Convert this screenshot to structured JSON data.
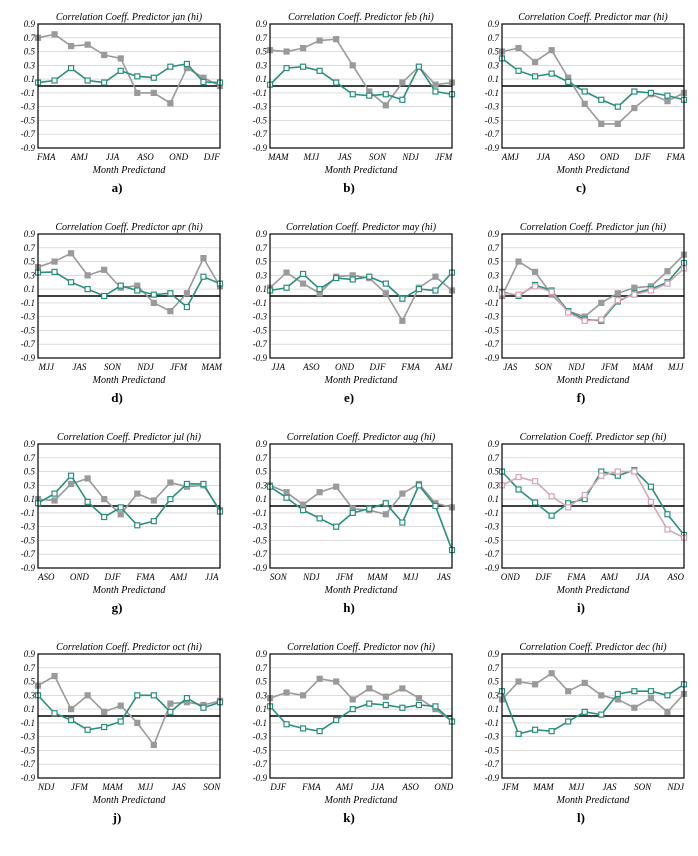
{
  "global": {
    "ylim": [
      -0.9,
      0.9
    ],
    "yticks": [
      -0.9,
      -0.7,
      -0.5,
      -0.3,
      -0.1,
      0.1,
      0.3,
      0.5,
      0.7,
      0.9
    ],
    "grid_color": "#c8c8c8",
    "axis_color": "#000000",
    "background_color": "#ffffff",
    "title_fontsize": 10,
    "tick_fontsize": 9,
    "axis_label_fontsize": 10,
    "font_family": "Comic Sans MS",
    "line_width": 1.6,
    "marker_size": 5,
    "xlabel": "Month Predictand",
    "series_styles": {
      "gray": {
        "color": "#9a9a9a",
        "marker_fill": "#9a9a9a",
        "marker_stroke": "#9a9a9a",
        "marker_shape": "square"
      },
      "teal": {
        "color": "#2a8f7f",
        "marker_fill": "#ffffff",
        "marker_stroke": "#2a8f7f",
        "marker_shape": "square"
      },
      "pink": {
        "color": "#d4a5b5",
        "marker_fill": "#ffffff",
        "marker_stroke": "#d4a5b5",
        "marker_shape": "square"
      }
    }
  },
  "panels": [
    {
      "sublabel": "a)",
      "title": "Correlation Coeff. Predictor jan (hi)",
      "xlabels": [
        "FMA",
        "AMJ",
        "JJA",
        "ASO",
        "OND",
        "DJF"
      ],
      "series": [
        {
          "style": "gray",
          "values": [
            0.7,
            0.75,
            0.58,
            0.6,
            0.45,
            0.4,
            -0.1,
            -0.1,
            -0.25,
            0.26,
            0.12,
            0.0
          ]
        },
        {
          "style": "teal",
          "values": [
            0.05,
            0.08,
            0.26,
            0.08,
            0.05,
            0.22,
            0.14,
            0.12,
            0.28,
            0.32,
            0.06,
            0.05
          ]
        }
      ]
    },
    {
      "sublabel": "b)",
      "title": "Correlation Coeff. Predictor feb (hi)",
      "xlabels": [
        "MAM",
        "MJJ",
        "JAS",
        "SON",
        "NDJ",
        "JFM"
      ],
      "series": [
        {
          "style": "gray",
          "values": [
            0.52,
            0.5,
            0.55,
            0.66,
            0.68,
            0.3,
            -0.08,
            -0.28,
            0.05,
            0.28,
            0.02,
            0.05
          ]
        },
        {
          "style": "teal",
          "values": [
            0.02,
            0.26,
            0.28,
            0.22,
            0.05,
            -0.12,
            -0.14,
            -0.12,
            -0.2,
            0.28,
            -0.08,
            -0.12
          ]
        }
      ]
    },
    {
      "sublabel": "c)",
      "title": "Correlation Coeff. Predictor mar (hi)",
      "xlabels": [
        "AMJ",
        "JJA",
        "ASO",
        "OND",
        "DJF",
        "FMA"
      ],
      "series": [
        {
          "style": "gray",
          "values": [
            0.5,
            0.55,
            0.35,
            0.52,
            0.12,
            -0.26,
            -0.55,
            -0.55,
            -0.32,
            -0.12,
            -0.22,
            -0.1
          ]
        },
        {
          "style": "teal",
          "values": [
            0.4,
            0.22,
            0.14,
            0.18,
            0.06,
            -0.08,
            -0.2,
            -0.3,
            -0.08,
            -0.1,
            -0.14,
            -0.2
          ]
        }
      ]
    },
    {
      "sublabel": "d)",
      "title": "Correlation Coeff. Predictor apr (hi)",
      "xlabels": [
        "MJJ",
        "JAS",
        "SON",
        "NDJ",
        "JFM",
        "MAM"
      ],
      "series": [
        {
          "style": "gray",
          "values": [
            0.42,
            0.5,
            0.62,
            0.3,
            0.38,
            0.12,
            0.15,
            -0.1,
            -0.22,
            0.04,
            0.55,
            0.14
          ]
        },
        {
          "style": "teal",
          "values": [
            0.34,
            0.35,
            0.2,
            0.1,
            0.0,
            0.15,
            0.08,
            0.02,
            0.04,
            -0.16,
            0.28,
            0.18
          ]
        }
      ]
    },
    {
      "sublabel": "e)",
      "title": "Correlation Coeff. Predictor may (hi)",
      "xlabels": [
        "JJA",
        "ASO",
        "OND",
        "DJF",
        "FMA",
        "AMJ"
      ],
      "series": [
        {
          "style": "gray",
          "values": [
            0.12,
            0.34,
            0.18,
            0.04,
            0.28,
            0.3,
            0.26,
            0.04,
            -0.36,
            0.12,
            0.28,
            0.08
          ]
        },
        {
          "style": "teal",
          "values": [
            0.08,
            0.12,
            0.32,
            0.1,
            0.26,
            0.24,
            0.28,
            0.18,
            -0.04,
            0.1,
            0.08,
            0.34
          ]
        }
      ]
    },
    {
      "sublabel": "f)",
      "title": "Correlation Coeff. Predictor jun (hi)",
      "xlabels": [
        "JAS",
        "SON",
        "NDJ",
        "JFM",
        "MAM",
        "MJJ"
      ],
      "series": [
        {
          "style": "gray",
          "values": [
            0.0,
            0.5,
            0.35,
            0.02,
            -0.22,
            -0.3,
            -0.1,
            0.04,
            0.12,
            0.14,
            0.36,
            0.6
          ]
        },
        {
          "style": "teal",
          "values": [
            0.06,
            0.0,
            0.16,
            0.08,
            -0.22,
            -0.34,
            -0.36,
            -0.08,
            0.04,
            0.1,
            0.2,
            0.48
          ]
        },
        {
          "style": "pink",
          "values": [
            0.04,
            0.02,
            0.14,
            0.06,
            -0.24,
            -0.36,
            -0.34,
            -0.06,
            0.02,
            0.08,
            0.18,
            0.4
          ]
        }
      ]
    },
    {
      "sublabel": "g)",
      "title": "Correlation Coeff. Predictor jul (hi)",
      "xlabels": [
        "ASO",
        "OND",
        "DJF",
        "FMA",
        "AMJ",
        "JJA"
      ],
      "series": [
        {
          "style": "gray",
          "values": [
            0.1,
            0.08,
            0.32,
            0.4,
            0.1,
            -0.12,
            0.18,
            0.08,
            0.34,
            0.28,
            0.3,
            -0.06
          ]
        },
        {
          "style": "teal",
          "values": [
            0.04,
            0.18,
            0.44,
            0.06,
            -0.16,
            -0.02,
            -0.28,
            -0.22,
            0.1,
            0.32,
            0.32,
            -0.08
          ]
        }
      ]
    },
    {
      "sublabel": "h)",
      "title": "Correlation Coeff. Predictor aug (hi)",
      "xlabels": [
        "SON",
        "NDJ",
        "JFM",
        "MAM",
        "MJJ",
        "JAS"
      ],
      "series": [
        {
          "style": "gray",
          "values": [
            0.3,
            0.2,
            0.02,
            0.2,
            0.28,
            -0.04,
            -0.06,
            -0.12,
            0.18,
            0.32,
            0.04,
            -0.02
          ]
        },
        {
          "style": "teal",
          "values": [
            0.28,
            0.12,
            -0.06,
            -0.18,
            -0.3,
            -0.1,
            -0.04,
            0.04,
            -0.24,
            0.3,
            0.0,
            -0.64
          ]
        }
      ]
    },
    {
      "sublabel": "i)",
      "title": "Correlation Coeff. Predictor sep (hi)",
      "xlabels": [
        "OND",
        "DJF",
        "FMA",
        "AMJ",
        "JJA",
        "ASO"
      ],
      "series": [
        {
          "style": "teal",
          "values": [
            0.5,
            0.24,
            0.05,
            -0.14,
            0.04,
            0.1,
            0.5,
            0.44,
            0.52,
            0.28,
            -0.12,
            -0.42
          ]
        },
        {
          "style": "pink",
          "values": [
            0.3,
            0.42,
            0.36,
            0.14,
            -0.02,
            0.16,
            0.44,
            0.5,
            0.5,
            0.06,
            -0.34,
            -0.46
          ]
        }
      ]
    },
    {
      "sublabel": "j)",
      "title": "Correlation Coeff. Predictor oct (hi)",
      "xlabels": [
        "NDJ",
        "JFM",
        "MAM",
        "MJJ",
        "JAS",
        "SON"
      ],
      "series": [
        {
          "style": "gray",
          "values": [
            0.44,
            0.58,
            0.1,
            0.3,
            0.06,
            0.15,
            -0.1,
            -0.42,
            0.18,
            0.2,
            0.16,
            0.22
          ]
        },
        {
          "style": "teal",
          "values": [
            0.3,
            0.04,
            -0.06,
            -0.2,
            -0.16,
            -0.08,
            0.3,
            0.3,
            0.06,
            0.26,
            0.12,
            0.2
          ]
        }
      ]
    },
    {
      "sublabel": "k)",
      "title": "Correlation Coeff. Predictor nov (hi)",
      "xlabels": [
        "DJF",
        "FMA",
        "AMJ",
        "JJA",
        "ASO",
        "OND"
      ],
      "series": [
        {
          "style": "gray",
          "values": [
            0.26,
            0.34,
            0.3,
            0.54,
            0.5,
            0.24,
            0.4,
            0.28,
            0.4,
            0.26,
            0.1,
            -0.08
          ]
        },
        {
          "style": "teal",
          "values": [
            0.14,
            -0.12,
            -0.18,
            -0.22,
            -0.06,
            0.1,
            0.18,
            0.16,
            0.12,
            0.16,
            0.14,
            -0.08
          ]
        }
      ]
    },
    {
      "sublabel": "l)",
      "title": "Correlation Coeff. Predictor dec (hi)",
      "xlabels": [
        "JFM",
        "MAM",
        "MJJ",
        "JAS",
        "SON",
        "NDJ"
      ],
      "series": [
        {
          "style": "gray",
          "values": [
            0.24,
            0.5,
            0.46,
            0.62,
            0.36,
            0.48,
            0.3,
            0.24,
            0.12,
            0.26,
            0.06,
            0.32
          ]
        },
        {
          "style": "teal",
          "values": [
            0.36,
            -0.26,
            -0.2,
            -0.22,
            -0.08,
            0.06,
            0.02,
            0.32,
            0.36,
            0.36,
            0.3,
            0.46
          ]
        }
      ]
    }
  ]
}
